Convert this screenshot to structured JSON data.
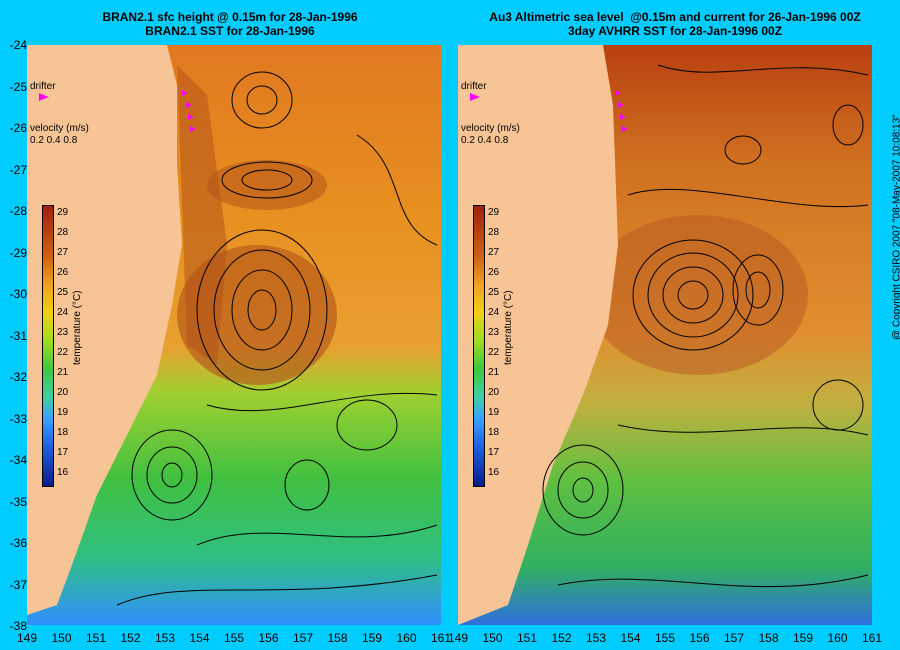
{
  "titles": {
    "left_line1": "BRAN2.1 sfc height @ 0.15m for 28-Jan-1996",
    "left_line2": "BRAN2.1 SST for 28-Jan-1996",
    "right_line1": "Au3 Altimetric sea level  @0.15m and current for 26-Jan-1996 00Z",
    "right_line2": "3day AVHRR SST for 28-Jan-1996 00Z"
  },
  "y_axis": [
    "-24",
    "-25",
    "-26",
    "-27",
    "-28",
    "-29",
    "-30",
    "-31",
    "-32",
    "-33",
    "-34",
    "-35",
    "-36",
    "-37",
    "-38"
  ],
  "x_axis": [
    "149",
    "150",
    "151",
    "152",
    "153",
    "154",
    "155",
    "156",
    "157",
    "158",
    "159",
    "160",
    "161"
  ],
  "x_axis_right": [
    "149",
    "150",
    "151",
    "152",
    "153",
    "154",
    "155",
    "156",
    "157",
    "158",
    "159",
    "160",
    "161"
  ],
  "legend": {
    "drifter": "drifter",
    "velocity": "velocity (m/s)",
    "velocity_scale": "0.2 0.4 0.8",
    "temperature": "temperature (°C)",
    "colorbar_ticks": [
      "29",
      "28",
      "27",
      "26",
      "25",
      "24",
      "23",
      "22",
      "21",
      "20",
      "19",
      "18",
      "17",
      "16"
    ]
  },
  "copyright": "@ Copyright CSIRO 2007 \"08-May-2007 10:08:13\"",
  "colors": {
    "background": "#00ccff",
    "land": "#f7c496",
    "drifter": "#ff00ff"
  }
}
